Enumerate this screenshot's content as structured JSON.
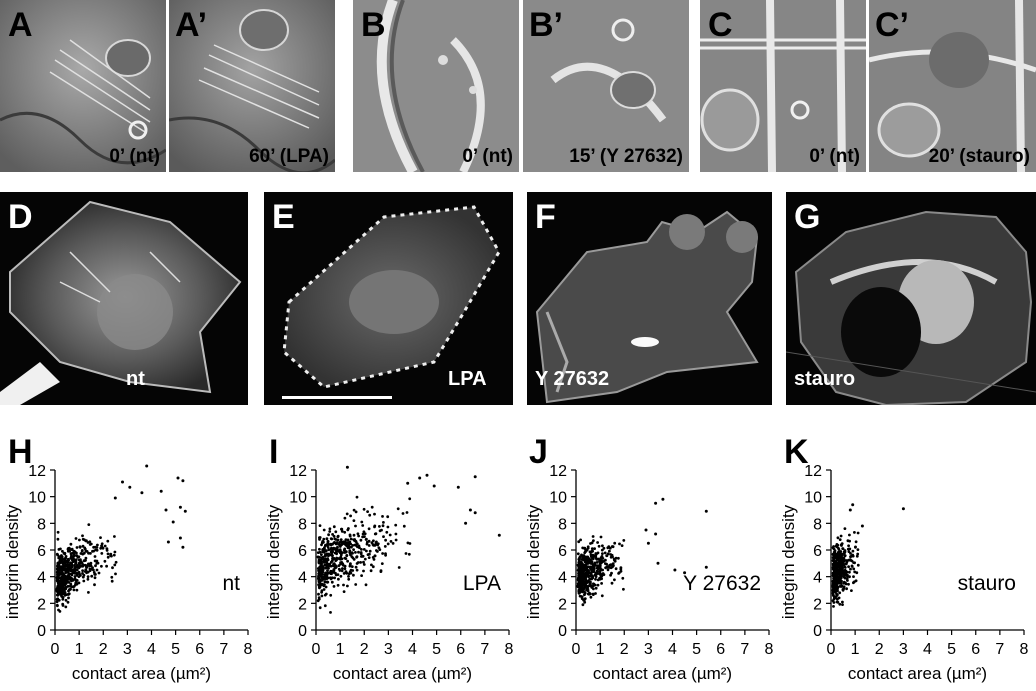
{
  "figure": {
    "phase_panels": [
      {
        "id": "A",
        "label": "A",
        "caption": "0’ (nt)"
      },
      {
        "id": "A2",
        "label": "A’",
        "caption": "60’ (LPA)"
      },
      {
        "id": "B",
        "label": "B",
        "caption": "0’ (nt)"
      },
      {
        "id": "B2",
        "label": "B’",
        "caption": "15’ (Y 27632)"
      },
      {
        "id": "C",
        "label": "C",
        "caption": "0’ (nt)"
      },
      {
        "id": "C2",
        "label": "C’",
        "caption": "20’ (stauro)"
      }
    ],
    "fluor_panels": [
      {
        "id": "D",
        "label": "D",
        "caption": "nt"
      },
      {
        "id": "E",
        "label": "E",
        "caption": "LPA"
      },
      {
        "id": "F",
        "label": "F",
        "caption": "Y 27632"
      },
      {
        "id": "G",
        "label": "G",
        "caption": "stauro"
      }
    ]
  },
  "chart_data": [
    {
      "type": "scatter",
      "panel_label": "H",
      "annotation": "nt",
      "xlabel": "contact area (µm²)",
      "ylabel": "integrin density",
      "xlim": [
        0,
        8
      ],
      "ylim": [
        0,
        12
      ],
      "xticks": [
        0,
        1,
        2,
        3,
        4,
        5,
        6,
        7,
        8
      ],
      "yticks": [
        0,
        2,
        4,
        6,
        8,
        10,
        12
      ],
      "cloud": {
        "n": 520,
        "seed": 11,
        "x_scale": 0.7,
        "x_max": 4.2,
        "slope": 1.6,
        "intercept": 3.2,
        "noise": 1.0
      },
      "points": [
        [
          3.8,
          12.3
        ],
        [
          5.1,
          11.4
        ],
        [
          5.3,
          11.2
        ],
        [
          2.8,
          11.1
        ],
        [
          4.4,
          10.4
        ],
        [
          5.2,
          9.2
        ],
        [
          5.4,
          8.9
        ],
        [
          4.6,
          9.0
        ],
        [
          4.9,
          8.1
        ],
        [
          5.3,
          6.2
        ],
        [
          4.7,
          6.6
        ],
        [
          5.2,
          6.9
        ],
        [
          3.6,
          10.3
        ],
        [
          3.1,
          10.7
        ],
        [
          2.5,
          9.9
        ]
      ]
    },
    {
      "type": "scatter",
      "panel_label": "I",
      "annotation": "LPA",
      "xlabel": "contact area (µm²)",
      "ylabel": "integrin density",
      "xlim": [
        0,
        8
      ],
      "ylim": [
        0,
        12
      ],
      "xticks": [
        0,
        1,
        2,
        3,
        4,
        5,
        6,
        7,
        8
      ],
      "yticks": [
        0,
        2,
        4,
        6,
        8,
        10,
        12
      ],
      "cloud": {
        "n": 520,
        "seed": 23,
        "x_scale": 1.1,
        "x_max": 5.0,
        "slope": 1.7,
        "intercept": 4.0,
        "noise": 1.1
      },
      "points": [
        [
          6.6,
          11.5
        ],
        [
          5.9,
          10.7
        ],
        [
          6.4,
          9.0
        ],
        [
          6.2,
          8.0
        ],
        [
          6.6,
          8.8
        ],
        [
          7.6,
          7.1
        ],
        [
          1.3,
          12.2
        ],
        [
          4.6,
          11.6
        ],
        [
          4.9,
          10.8
        ],
        [
          4.3,
          11.4
        ],
        [
          3.8,
          11.0
        ]
      ]
    },
    {
      "type": "scatter",
      "panel_label": "J",
      "annotation": "Y 27632",
      "xlabel": "contact area (µm²)",
      "ylabel": "integrin density",
      "xlim": [
        0,
        8
      ],
      "ylim": [
        0,
        12
      ],
      "xticks": [
        0,
        1,
        2,
        3,
        4,
        5,
        6,
        7,
        8
      ],
      "yticks": [
        0,
        2,
        4,
        6,
        8,
        10,
        12
      ],
      "cloud": {
        "n": 460,
        "seed": 37,
        "x_scale": 0.55,
        "x_max": 3.0,
        "slope": 1.2,
        "intercept": 3.5,
        "noise": 0.9
      },
      "points": [
        [
          5.4,
          8.9
        ],
        [
          3.6,
          9.8
        ],
        [
          3.3,
          9.5
        ],
        [
          4.1,
          4.5
        ],
        [
          4.5,
          4.3
        ],
        [
          5.4,
          4.7
        ],
        [
          3.3,
          7.2
        ],
        [
          2.9,
          7.5
        ],
        [
          3.0,
          6.5
        ],
        [
          3.4,
          5.0
        ]
      ]
    },
    {
      "type": "scatter",
      "panel_label": "K",
      "annotation": "stauro",
      "xlabel": "contact area (µm²)",
      "ylabel": "integrin density",
      "xlim": [
        0,
        8
      ],
      "ylim": [
        0,
        12
      ],
      "xticks": [
        0,
        1,
        2,
        3,
        4,
        5,
        6,
        7,
        8
      ],
      "yticks": [
        0,
        2,
        4,
        6,
        8,
        10,
        12
      ],
      "cloud": {
        "n": 420,
        "seed": 53,
        "x_scale": 0.3,
        "x_max": 1.3,
        "slope": 1.8,
        "intercept": 3.5,
        "noise": 1.0
      },
      "points": [
        [
          3.0,
          9.1
        ],
        [
          0.9,
          9.4
        ],
        [
          0.8,
          9.0
        ],
        [
          1.3,
          7.8
        ]
      ]
    }
  ]
}
